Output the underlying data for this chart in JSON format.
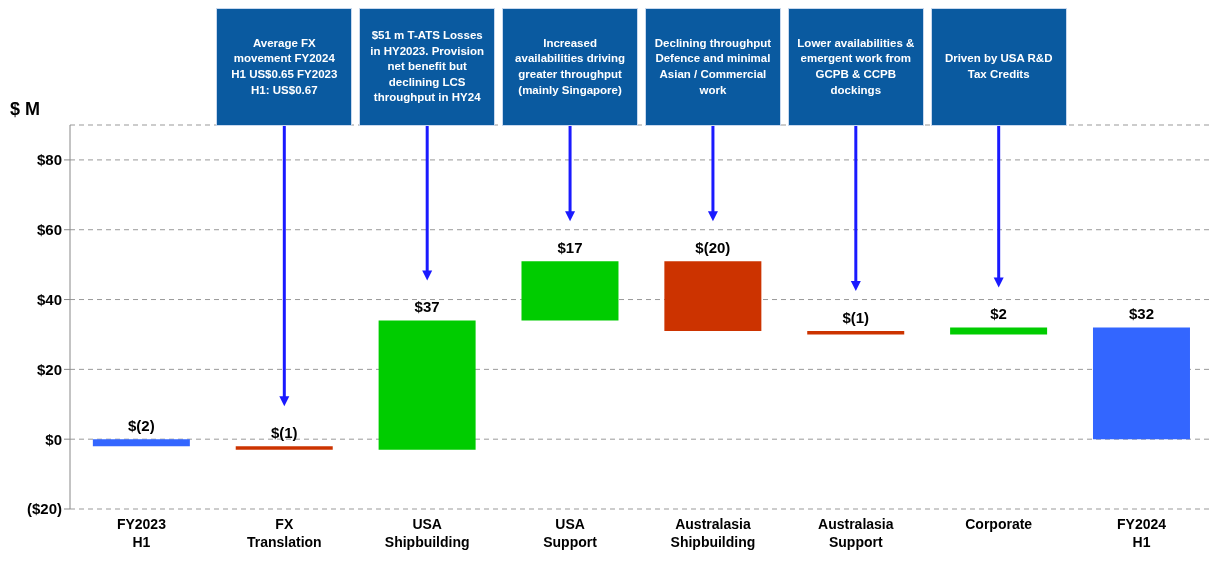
{
  "chart_data": {
    "type": "bar",
    "ylabel": "$ M",
    "categories": [
      "FY2023 H1",
      "FX Translation",
      "USA Shipbuilding",
      "USA Support",
      "Australasia Shipbuilding",
      "Australasia Support",
      "Corporate",
      "FY2024 H1"
    ],
    "values": [
      -2,
      -1,
      37,
      17,
      -20,
      -1,
      2,
      32
    ],
    "base": [
      0,
      -2,
      -3,
      34,
      51,
      31,
      30,
      0
    ],
    "colors": [
      "#3366ff",
      "#cc3300",
      "#00cc00",
      "#00cc00",
      "#cc3300",
      "#cc3300",
      "#00cc00",
      "#3366ff"
    ],
    "value_labels": [
      "$(2)",
      "$(1)",
      "$37",
      "$17",
      "$(20)",
      "$(1)",
      "$2",
      "$32"
    ],
    "ylim": [
      -20,
      90
    ],
    "yticks": [
      {
        "value": -20,
        "label": "($20)"
      },
      {
        "value": 0,
        "label": "$0"
      },
      {
        "value": 20,
        "label": "$20"
      },
      {
        "value": 40,
        "label": "$40"
      },
      {
        "value": 60,
        "label": "$60"
      },
      {
        "value": 80,
        "label": "$80"
      }
    ],
    "grid": "y",
    "annotations": [
      "Average FX movement FY2024 H1 US$0.65 FY2023 H1: US$0.67",
      "$51 m T-ATS Losses in HY2023. Provision net benefit but declining LCS throughput in HY24",
      "Increased availabilities driving greater throughput (mainly Singapore)",
      "Declining throughput Defence and minimal Asian / Commercial work",
      "Lower availabilities & emergent work from GCPB & CCPB dockings",
      "Driven by USA R&D Tax Credits"
    ]
  }
}
